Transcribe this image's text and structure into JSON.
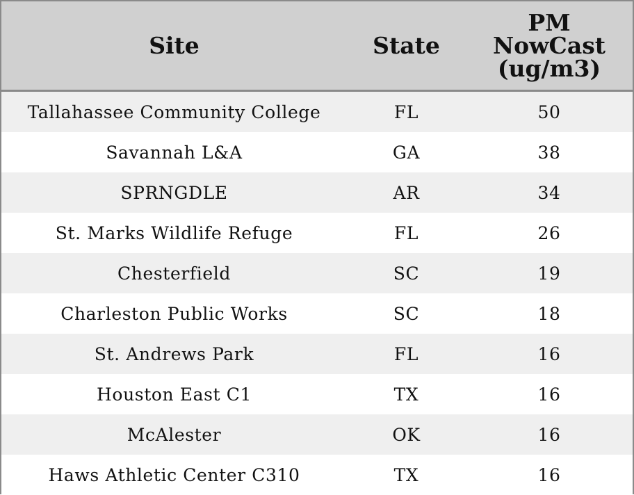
{
  "table": {
    "headers": {
      "site": "Site",
      "state": "State",
      "pm": "PM\nNowCast\n(ug/m3)"
    },
    "rows": [
      {
        "site": "Tallahassee Community College",
        "state": "FL",
        "pm": "50"
      },
      {
        "site": "Savannah L&A",
        "state": "GA",
        "pm": "38"
      },
      {
        "site": "SPRNGDLE",
        "state": "AR",
        "pm": "34"
      },
      {
        "site": "St. Marks Wildlife Refuge",
        "state": "FL",
        "pm": "26"
      },
      {
        "site": "Chesterfield",
        "state": "SC",
        "pm": "19"
      },
      {
        "site": "Charleston Public Works",
        "state": "SC",
        "pm": "18"
      },
      {
        "site": "St. Andrews Park",
        "state": "FL",
        "pm": "16"
      },
      {
        "site": "Houston East C1",
        "state": "TX",
        "pm": "16"
      },
      {
        "site": "McAlester",
        "state": "OK",
        "pm": "16"
      },
      {
        "site": "Haws Athletic Center C310",
        "state": "TX",
        "pm": "16"
      }
    ]
  },
  "colors": {
    "header_bg": "#d0d0d0",
    "stripe_bg": "#efefef",
    "border": "#8a8a8a"
  }
}
